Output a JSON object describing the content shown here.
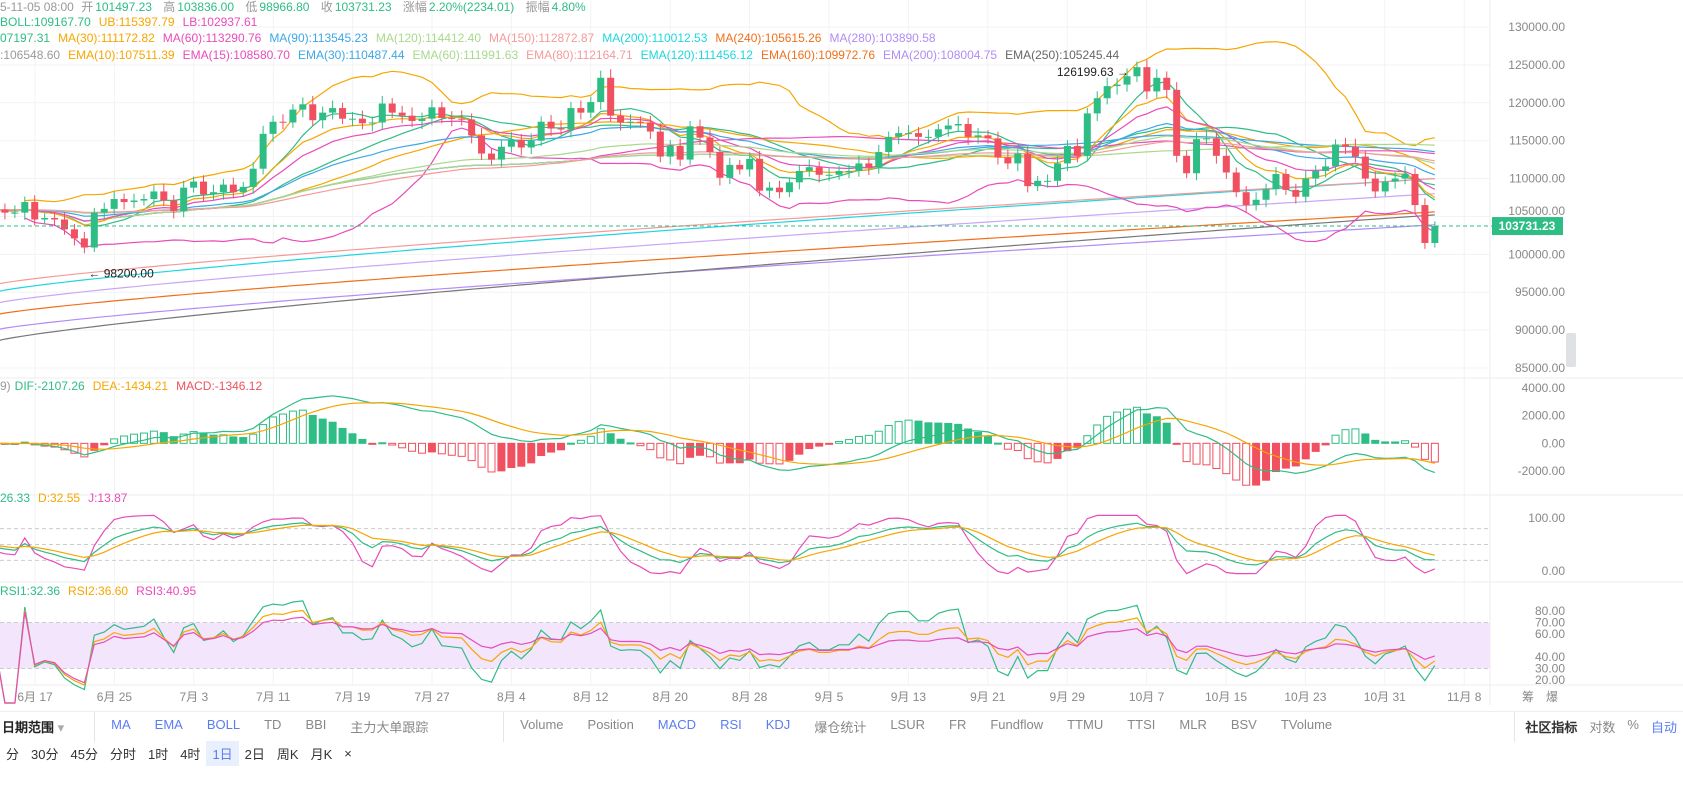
{
  "header": {
    "datetime": "5-11-05 08:00",
    "open_label": "开",
    "open": "101497.23",
    "high_label": "高",
    "high": "103836.00",
    "low_label": "低",
    "low": "98966.80",
    "close_label": "收",
    "close": "103731.23",
    "change_label": "涨幅",
    "change": "2.20%(2234.01)",
    "amp_label": "振幅",
    "amp": "4.80%"
  },
  "boll": [
    {
      "t": "BOLL:109167.70",
      "c": "#2ebd85"
    },
    {
      "t": "UB:115397.79",
      "c": "#f7a600"
    },
    {
      "t": "LB:102937.61",
      "c": "#e94bbb"
    }
  ],
  "ma": [
    {
      "t": "07197.31",
      "c": "#2ebd85"
    },
    {
      "t": "MA(30):111172.82",
      "c": "#f7a600"
    },
    {
      "t": "MA(60):113290.76",
      "c": "#e94bbb"
    },
    {
      "t": "MA(90):113545.23",
      "c": "#3ca7e8"
    },
    {
      "t": "MA(120):114412.40",
      "c": "#a8d98a"
    },
    {
      "t": "MA(150):112872.87",
      "c": "#f59a9a"
    },
    {
      "t": "MA(200):110012.53",
      "c": "#1fd6e0"
    },
    {
      "t": "MA(240):105615.26",
      "c": "#f0701a"
    },
    {
      "t": "MA(280):103890.58",
      "c": "#b18cf5"
    }
  ],
  "ema": [
    {
      "t": ":106548.60",
      "c": "#999"
    },
    {
      "t": "EMA(10):107511.39",
      "c": "#f7a600"
    },
    {
      "t": "EMA(15):108580.70",
      "c": "#e94bbb"
    },
    {
      "t": "EMA(30):110487.44",
      "c": "#3ca7e8"
    },
    {
      "t": "EMA(60):111991.63",
      "c": "#a8d98a"
    },
    {
      "t": "EMA(80):112164.71",
      "c": "#f59a9a"
    },
    {
      "t": "EMA(120):111456.12",
      "c": "#1fd6e0"
    },
    {
      "t": "EMA(160):109972.76",
      "c": "#f0701a"
    },
    {
      "t": "EMA(200):108004.75",
      "c": "#b18cf5"
    },
    {
      "t": "EMA(250):105245.44",
      "c": "#666"
    }
  ],
  "macd_legend": {
    "prefix": "9)",
    "dif": "DIF:-2107.26",
    "dea": "DEA:-1434.21",
    "macd": "MACD:-1346.12"
  },
  "kdj_legend": {
    "k": "26.33",
    "d": "D:32.55",
    "j": "J:13.87"
  },
  "rsi_legend": {
    "r1": "RSI1:32.36",
    "r2": "RSI2:36.60",
    "r3": "RSI3:40.95"
  },
  "annotations": {
    "high": "126199.63",
    "low": "98200.00"
  },
  "price_tag": "103731.23",
  "colors": {
    "up": "#2ebd85",
    "down": "#f0505f",
    "accent": "#5b7cf0"
  },
  "chart_data": {
    "type": "candlestick",
    "start_date": "06-13",
    "closes": [
      105.9,
      105.5,
      105.5,
      106.9,
      104.6,
      104.8,
      104.6,
      103.3,
      102.1,
      100.9,
      105.5,
      106,
      107.3,
      106.9,
      107.1,
      107.3,
      108.3,
      107.1,
      105.7,
      108.8,
      109.6,
      107.9,
      108.2,
      109.2,
      108.2,
      108.9,
      111.3,
      115.9,
      117.5,
      117.4,
      119.1,
      119.8,
      117.7,
      118.7,
      119.3,
      117.9,
      117.9,
      117.3,
      117.4,
      119.9,
      118.7,
      118.3,
      117.6,
      117.9,
      119.4,
      118,
      117.9,
      117.8,
      115.7,
      113.3,
      112.5,
      114.2,
      115.1,
      114.1,
      115,
      117.5,
      116.6,
      116.5,
      119.3,
      118.7,
      120.1,
      123.3,
      118.3,
      117.4,
      117.5,
      117.4,
      116.2,
      112.9,
      114.3,
      112.5,
      116.9,
      115.4,
      113.5,
      110.1,
      111.8,
      111.2,
      112.6,
      108.4,
      108.8,
      108.2,
      109.5,
      111,
      111.5,
      110.5,
      110.5,
      111,
      111,
      112,
      111.5,
      113.5,
      115.5,
      116,
      116,
      115.5,
      115.5,
      116.5,
      117,
      117.2,
      115.5,
      115.7,
      115.3,
      112.8,
      112,
      113.3,
      109,
      109.7,
      109.7,
      112,
      114.3,
      113,
      118.6,
      120.6,
      122.2,
      122.4,
      123.5,
      124.7,
      121.5,
      123.3,
      121.7,
      113,
      110.7,
      115.2,
      115.3,
      113,
      110.8,
      108.2,
      106.5,
      107.2,
      108.6,
      110.6,
      108.5,
      107.6,
      110,
      111,
      111.6,
      114.5,
      114.2,
      112.9,
      110,
      108.3,
      109.6,
      110,
      110.6,
      106.5,
      101.5,
      103.731
    ],
    "price_unit": 1000,
    "first_open": 106.5,
    "long_lines": [
      {
        "name": "MA(200)",
        "color": "#1fd6e0",
        "from": 95,
        "to": 110
      },
      {
        "name": "MA(240)",
        "color": "#f0701a",
        "from": 92,
        "to": 105.6
      },
      {
        "name": "MA(280)",
        "color": "#b18cf5",
        "from": 90,
        "to": 103.9
      },
      {
        "name": "EMA(250)",
        "color": "#777",
        "from": 88.5,
        "to": 105.2
      },
      {
        "name": "EMA(200)",
        "color": "#c9a6f7",
        "from": 93.5,
        "to": 108
      },
      {
        "name": "EMA(160)",
        "color": "#f59a9a",
        "from": 96,
        "to": 110
      }
    ],
    "x_ticks": [
      "6月 17",
      "6月 25",
      "7月 3",
      "7月 11",
      "7月 19",
      "7月 27",
      "8月 4",
      "8月 12",
      "8月 20",
      "8月 28",
      "9月 5",
      "9月 13",
      "9月 21",
      "9月 29",
      "10月 7",
      "10月 15",
      "10月 23",
      "10月 31",
      "11月 8"
    ],
    "price_ticks": [
      "130000.00",
      "125000.00",
      "120000.00",
      "115000.00",
      "110000.00",
      "105000.00",
      "100000.00",
      "95000.00",
      "90000.00",
      "85000.00"
    ],
    "macd_ticks": [
      "4000.00",
      "2000.00",
      "0.00",
      "-2000.00"
    ],
    "kdj_ticks": [
      "100.00",
      "0.00"
    ],
    "rsi_ticks": [
      "80.00",
      "70.00",
      "60.00",
      "40.00",
      "30.00",
      "20.00"
    ],
    "ylim": [
      85000,
      130000
    ]
  },
  "axis_corner": [
    "筹",
    "爆"
  ],
  "toolbar": {
    "date_range": "日期范围",
    "main": [
      "MA",
      "EMA",
      "BOLL",
      "TD",
      "BBI",
      "主力大单跟踪"
    ],
    "sub": [
      "Volume",
      "Position",
      "MACD",
      "RSI",
      "KDJ",
      "爆仓统计",
      "LSUR",
      "FR",
      "Fundflow",
      "TTMU",
      "TTSI",
      "MLR",
      "BSV",
      "TVolume"
    ],
    "right": [
      "社区指标",
      "对数",
      "%",
      "自动"
    ]
  },
  "timeframes": [
    "分",
    "30分",
    "45分",
    "分时",
    "1时",
    "4时",
    "1日",
    "2日",
    "周K",
    "月K",
    "×"
  ]
}
